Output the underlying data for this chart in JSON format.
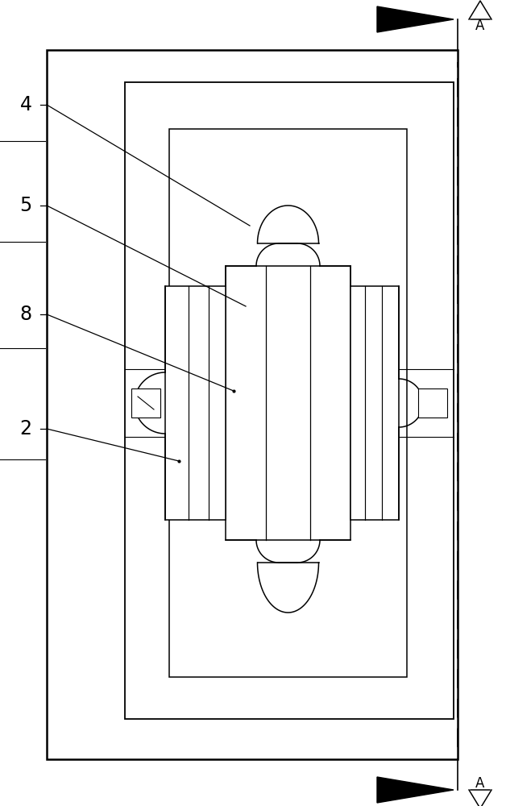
{
  "fig_width": 6.28,
  "fig_height": 10.0,
  "bg_color": "#ffffff",
  "lw_outer": 1.8,
  "lw_mid": 1.3,
  "lw_inner": 1.1,
  "lw_hob": 1.1,
  "lw_thin": 0.8
}
